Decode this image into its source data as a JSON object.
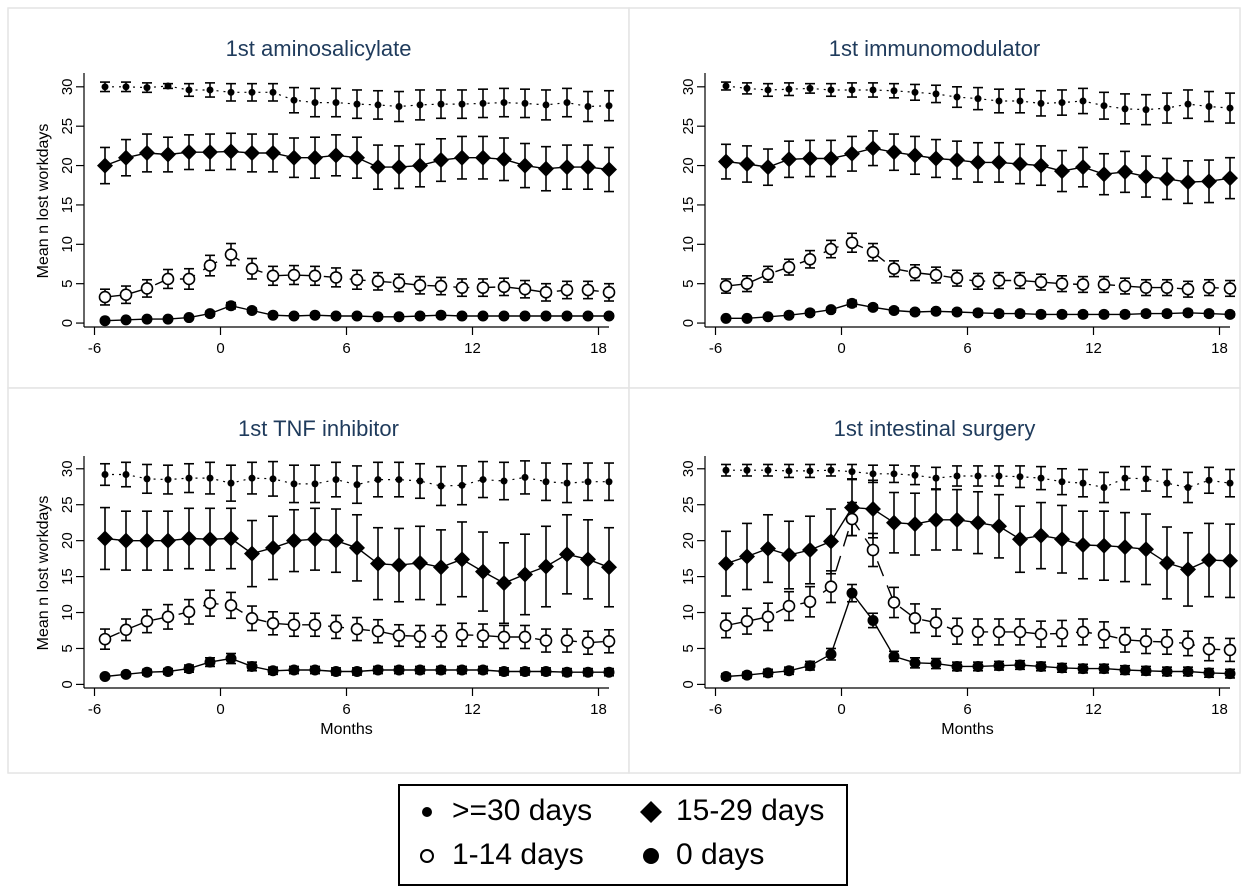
{
  "figure": {
    "panel_bg": "#ffffff",
    "panel_border": "#e4e4e4",
    "title_color": "#1f3b5c",
    "axis_color": "#000000"
  },
  "legend": {
    "position": "bottom-center",
    "items": [
      {
        "label": ">=30 days",
        "marker": "small-filled-circle",
        "line": "dotted"
      },
      {
        "label": "15-29 days",
        "marker": "filled-diamond",
        "line": "solid"
      },
      {
        "label": "1-14 days",
        "marker": "hollow-circle",
        "line": "long-dash"
      },
      {
        "label": "0 days",
        "marker": "filled-circle",
        "line": "solid"
      }
    ]
  },
  "chart_data": [
    {
      "type": "line",
      "title": "1st aminosalicylate",
      "xlabel": "",
      "ylabel": "Mean n lost workdays",
      "xticks": [
        -6,
        0,
        6,
        12,
        18
      ],
      "yticks": [
        0,
        5,
        10,
        15,
        20,
        25,
        30
      ],
      "xlim": [
        -6.5,
        18.5
      ],
      "ylim": [
        -0.5,
        31.5
      ],
      "grid": false,
      "x": [
        -5.5,
        -4.5,
        -3.5,
        -2.5,
        -1.5,
        -0.5,
        0.5,
        1.5,
        2.5,
        3.5,
        4.5,
        5.5,
        6.5,
        7.5,
        8.5,
        9.5,
        10.5,
        11.5,
        12.5,
        13.5,
        14.5,
        15.5,
        16.5,
        17.5,
        18.5
      ],
      "series": [
        {
          "name": ">=30 days",
          "values": [
            30.0,
            30.0,
            29.9,
            30.1,
            29.6,
            29.6,
            29.3,
            29.3,
            29.3,
            28.3,
            28.0,
            28.0,
            27.8,
            27.7,
            27.5,
            27.7,
            27.8,
            27.8,
            27.9,
            28.0,
            27.9,
            27.7,
            28.0,
            27.5,
            27.6
          ],
          "err": [
            0.6,
            0.6,
            0.6,
            0.3,
            0.8,
            0.9,
            1.1,
            1.1,
            1.1,
            1.6,
            1.8,
            1.8,
            1.8,
            1.8,
            1.9,
            1.9,
            1.8,
            1.8,
            1.8,
            1.8,
            1.8,
            1.9,
            1.8,
            1.9,
            1.9
          ]
        },
        {
          "name": "15-29 days",
          "values": [
            20.0,
            21.0,
            21.6,
            21.4,
            21.7,
            21.7,
            21.8,
            21.6,
            21.6,
            21.0,
            21.0,
            21.3,
            21.0,
            19.8,
            19.8,
            20.0,
            20.7,
            21.0,
            21.0,
            20.8,
            20.0,
            19.6,
            19.8,
            19.8,
            19.5
          ],
          "err": [
            2.3,
            2.3,
            2.4,
            2.2,
            2.2,
            2.3,
            2.3,
            2.4,
            2.4,
            2.5,
            2.6,
            2.6,
            2.6,
            2.8,
            2.7,
            2.7,
            2.7,
            2.7,
            2.7,
            2.7,
            2.8,
            2.8,
            2.8,
            2.8,
            2.8
          ]
        },
        {
          "name": "1-14 days",
          "values": [
            3.3,
            3.6,
            4.4,
            5.6,
            5.6,
            7.3,
            8.7,
            6.9,
            6.0,
            6.1,
            6.0,
            5.8,
            5.5,
            5.3,
            5.1,
            4.8,
            4.7,
            4.5,
            4.5,
            4.6,
            4.3,
            3.9,
            4.2,
            4.2,
            3.9
          ],
          "err": [
            1.0,
            1.1,
            1.1,
            1.2,
            1.3,
            1.3,
            1.4,
            1.3,
            1.2,
            1.2,
            1.2,
            1.2,
            1.2,
            1.1,
            1.1,
            1.1,
            1.1,
            1.1,
            1.1,
            1.1,
            1.1,
            1.1,
            1.1,
            1.1,
            1.1
          ]
        },
        {
          "name": "0 days",
          "values": [
            0.3,
            0.4,
            0.5,
            0.5,
            0.7,
            1.2,
            2.2,
            1.6,
            1.0,
            0.9,
            1.0,
            0.9,
            0.9,
            0.8,
            0.8,
            0.9,
            1.0,
            0.9,
            0.9,
            0.9,
            0.9,
            0.9,
            0.9,
            0.9,
            0.9
          ],
          "err": [
            0.15,
            0.15,
            0.2,
            0.2,
            0.25,
            0.3,
            0.4,
            0.3,
            0.25,
            0.25,
            0.25,
            0.25,
            0.25,
            0.25,
            0.25,
            0.25,
            0.25,
            0.25,
            0.25,
            0.25,
            0.25,
            0.25,
            0.25,
            0.25,
            0.25
          ]
        }
      ]
    },
    {
      "type": "line",
      "title": "1st immunomodulator",
      "xlabel": "",
      "ylabel": "",
      "xticks": [
        -6,
        0,
        6,
        12,
        18
      ],
      "yticks": [
        0,
        5,
        10,
        15,
        20,
        25,
        30
      ],
      "xlim": [
        -6.5,
        18.5
      ],
      "ylim": [
        -0.5,
        31.5
      ],
      "grid": false,
      "x": [
        -5.5,
        -4.5,
        -3.5,
        -2.5,
        -1.5,
        -0.5,
        0.5,
        1.5,
        2.5,
        3.5,
        4.5,
        5.5,
        6.5,
        7.5,
        8.5,
        9.5,
        10.5,
        11.5,
        12.5,
        13.5,
        14.5,
        15.5,
        16.5,
        17.5,
        18.5
      ],
      "series": [
        {
          "name": ">=30 days",
          "values": [
            30.1,
            29.8,
            29.6,
            29.7,
            29.8,
            29.6,
            29.6,
            29.6,
            29.5,
            29.3,
            29.1,
            28.7,
            28.5,
            28.2,
            28.2,
            27.9,
            28.0,
            28.2,
            27.6,
            27.2,
            27.1,
            27.3,
            27.8,
            27.5,
            27.3
          ],
          "err": [
            0.5,
            0.7,
            0.8,
            0.8,
            0.6,
            0.8,
            0.9,
            0.9,
            0.9,
            1.0,
            1.1,
            1.3,
            1.4,
            1.5,
            1.5,
            1.6,
            1.6,
            1.6,
            1.7,
            1.9,
            1.9,
            1.9,
            1.8,
            1.9,
            1.9
          ]
        },
        {
          "name": "15-29 days",
          "values": [
            20.5,
            20.2,
            19.8,
            20.8,
            20.9,
            20.9,
            21.5,
            22.2,
            21.7,
            21.3,
            20.9,
            20.7,
            20.4,
            20.4,
            20.2,
            20.0,
            19.3,
            19.8,
            18.9,
            19.2,
            18.6,
            18.3,
            17.9,
            18.0,
            18.4
          ],
          "err": [
            2.2,
            2.3,
            2.3,
            2.3,
            2.3,
            2.3,
            2.2,
            2.2,
            2.3,
            2.4,
            2.4,
            2.4,
            2.5,
            2.5,
            2.5,
            2.5,
            2.6,
            2.5,
            2.6,
            2.6,
            2.6,
            2.6,
            2.7,
            2.7,
            2.6
          ]
        },
        {
          "name": "1-14 days",
          "values": [
            4.7,
            5.0,
            6.2,
            7.1,
            8.1,
            9.4,
            10.2,
            9.0,
            6.9,
            6.4,
            6.1,
            5.7,
            5.3,
            5.4,
            5.4,
            5.2,
            5.0,
            4.9,
            4.9,
            4.7,
            4.5,
            4.5,
            4.3,
            4.5,
            4.4
          ],
          "err": [
            0.9,
            1.0,
            1.0,
            1.0,
            1.1,
            1.1,
            1.2,
            1.1,
            1.0,
            1.0,
            1.0,
            1.0,
            1.0,
            1.0,
            1.0,
            1.0,
            1.0,
            1.0,
            1.0,
            1.0,
            1.0,
            1.0,
            1.0,
            1.0,
            1.0
          ]
        },
        {
          "name": "0 days",
          "values": [
            0.6,
            0.6,
            0.8,
            1.0,
            1.3,
            1.7,
            2.5,
            2.0,
            1.6,
            1.4,
            1.5,
            1.4,
            1.3,
            1.2,
            1.2,
            1.1,
            1.1,
            1.1,
            1.1,
            1.1,
            1.2,
            1.2,
            1.3,
            1.2,
            1.1
          ],
          "err": [
            0.2,
            0.2,
            0.2,
            0.25,
            0.3,
            0.3,
            0.4,
            0.3,
            0.3,
            0.3,
            0.3,
            0.3,
            0.3,
            0.3,
            0.3,
            0.3,
            0.3,
            0.3,
            0.3,
            0.3,
            0.3,
            0.3,
            0.3,
            0.3,
            0.3
          ]
        }
      ]
    },
    {
      "type": "line",
      "title": "1st TNF inhibitor",
      "xlabel": "Months",
      "ylabel": "Mean n lost workdays",
      "xticks": [
        -6,
        0,
        6,
        12,
        18
      ],
      "yticks": [
        0,
        5,
        10,
        15,
        20,
        25,
        30
      ],
      "xlim": [
        -6.5,
        18.5
      ],
      "ylim": [
        -0.5,
        31.5
      ],
      "grid": false,
      "x": [
        -5.5,
        -4.5,
        -3.5,
        -2.5,
        -1.5,
        -0.5,
        0.5,
        1.5,
        2.5,
        3.5,
        4.5,
        5.5,
        6.5,
        7.5,
        8.5,
        9.5,
        10.5,
        11.5,
        12.5,
        13.5,
        14.5,
        15.5,
        16.5,
        17.5,
        18.5
      ],
      "series": [
        {
          "name": ">=30 days",
          "values": [
            29.2,
            29.2,
            28.6,
            28.5,
            28.7,
            28.7,
            28.0,
            28.7,
            28.6,
            27.9,
            27.9,
            28.5,
            27.8,
            28.5,
            28.5,
            28.3,
            27.6,
            27.7,
            28.5,
            28.3,
            28.8,
            28.2,
            28.0,
            28.2,
            28.2
          ],
          "err": [
            1.5,
            1.7,
            2.0,
            2.0,
            2.0,
            2.2,
            2.5,
            2.2,
            2.4,
            2.6,
            2.6,
            2.4,
            2.6,
            2.4,
            2.4,
            2.4,
            2.7,
            2.7,
            2.5,
            2.6,
            2.3,
            2.6,
            2.7,
            2.6,
            2.6
          ]
        },
        {
          "name": "15-29 days",
          "values": [
            20.3,
            20.0,
            20.0,
            20.0,
            20.3,
            20.2,
            20.3,
            18.2,
            19.0,
            20.0,
            20.2,
            20.0,
            19.0,
            16.8,
            16.6,
            16.9,
            16.3,
            17.4,
            15.7,
            14.1,
            15.3,
            16.4,
            18.1,
            17.4,
            16.3
          ],
          "err": [
            4.3,
            4.1,
            4.1,
            4.1,
            4.2,
            4.3,
            4.2,
            4.6,
            4.4,
            4.3,
            4.3,
            4.4,
            4.6,
            5.0,
            5.1,
            5.1,
            5.2,
            5.2,
            5.5,
            5.6,
            5.6,
            5.6,
            5.5,
            5.5,
            5.5
          ]
        },
        {
          "name": "1-14 days",
          "values": [
            6.3,
            7.6,
            8.8,
            9.4,
            10.1,
            11.3,
            11.0,
            9.2,
            8.5,
            8.3,
            8.3,
            8.0,
            7.7,
            7.4,
            6.8,
            6.7,
            6.7,
            6.9,
            6.8,
            6.6,
            6.6,
            6.1,
            6.1,
            5.8,
            6.0
          ],
          "err": [
            1.4,
            1.5,
            1.6,
            1.7,
            1.7,
            1.8,
            1.8,
            1.7,
            1.6,
            1.6,
            1.6,
            1.6,
            1.6,
            1.6,
            1.5,
            1.5,
            1.5,
            1.6,
            1.6,
            1.6,
            1.6,
            1.6,
            1.6,
            1.6,
            1.6
          ]
        },
        {
          "name": "0 days",
          "values": [
            1.1,
            1.4,
            1.7,
            1.8,
            2.2,
            3.1,
            3.6,
            2.5,
            1.9,
            2.0,
            2.0,
            1.8,
            1.8,
            2.0,
            2.0,
            2.0,
            2.0,
            2.0,
            2.0,
            1.8,
            1.8,
            1.8,
            1.7,
            1.7,
            1.7
          ],
          "err": [
            0.3,
            0.3,
            0.4,
            0.4,
            0.5,
            0.6,
            0.7,
            0.6,
            0.5,
            0.5,
            0.5,
            0.5,
            0.5,
            0.5,
            0.5,
            0.5,
            0.5,
            0.5,
            0.5,
            0.5,
            0.5,
            0.5,
            0.5,
            0.5,
            0.5
          ]
        }
      ]
    },
    {
      "type": "line",
      "title": "1st intestinal surgery",
      "xlabel": "Months",
      "ylabel": "",
      "xticks": [
        -6,
        0,
        6,
        12,
        18
      ],
      "yticks": [
        0,
        5,
        10,
        15,
        20,
        25,
        30
      ],
      "xlim": [
        -6.5,
        18.5
      ],
      "ylim": [
        -0.5,
        31.5
      ],
      "grid": false,
      "x": [
        -5.5,
        -4.5,
        -3.5,
        -2.5,
        -1.5,
        -0.5,
        0.5,
        1.5,
        2.5,
        3.5,
        4.5,
        5.5,
        6.5,
        7.5,
        8.5,
        9.5,
        10.5,
        11.5,
        12.5,
        13.5,
        14.5,
        15.5,
        16.5,
        17.5,
        18.5
      ],
      "series": [
        {
          "name": ">=30 days",
          "values": [
            29.8,
            29.8,
            29.8,
            29.7,
            29.7,
            29.8,
            29.6,
            29.3,
            29.3,
            29.1,
            28.7,
            29.0,
            29.0,
            29.0,
            28.9,
            28.7,
            28.2,
            28.0,
            27.4,
            28.7,
            28.6,
            28.0,
            27.4,
            28.4,
            28.0
          ],
          "err": [
            0.8,
            0.8,
            0.8,
            0.9,
            0.9,
            0.8,
            1.0,
            1.2,
            1.2,
            1.3,
            1.5,
            1.4,
            1.4,
            1.4,
            1.5,
            1.6,
            1.8,
            1.9,
            2.1,
            1.6,
            1.7,
            1.9,
            2.1,
            1.8,
            1.9
          ]
        },
        {
          "name": "15-29 days",
          "values": [
            16.8,
            17.8,
            18.9,
            18.0,
            18.7,
            19.9,
            24.6,
            24.4,
            22.5,
            22.3,
            22.9,
            22.9,
            22.5,
            22.0,
            20.2,
            20.7,
            20.2,
            19.4,
            19.3,
            19.1,
            18.8,
            16.9,
            16.0,
            17.3,
            17.2
          ],
          "err": [
            4.5,
            4.6,
            4.7,
            4.7,
            4.7,
            4.5,
            3.9,
            4.0,
            4.2,
            4.3,
            4.2,
            4.2,
            4.3,
            4.4,
            4.6,
            4.6,
            4.7,
            4.7,
            4.8,
            4.8,
            4.9,
            5.0,
            5.1,
            5.1,
            5.1
          ]
        },
        {
          "name": "1-14 days",
          "values": [
            8.2,
            8.8,
            9.4,
            10.9,
            11.5,
            13.6,
            23.0,
            18.7,
            11.4,
            9.2,
            8.6,
            7.4,
            7.3,
            7.3,
            7.3,
            7.0,
            7.1,
            7.3,
            6.9,
            6.2,
            6.0,
            5.9,
            5.7,
            4.9,
            4.8
          ],
          "err": [
            1.7,
            1.8,
            1.9,
            2.0,
            2.1,
            2.2,
            2.3,
            2.3,
            2.1,
            2.0,
            1.9,
            1.8,
            1.8,
            1.8,
            1.8,
            1.8,
            1.8,
            1.8,
            1.8,
            1.7,
            1.7,
            1.7,
            1.7,
            1.6,
            1.6
          ]
        },
        {
          "name": "0 days",
          "values": [
            1.1,
            1.3,
            1.6,
            1.9,
            2.6,
            4.2,
            12.7,
            8.9,
            3.9,
            3.0,
            2.9,
            2.5,
            2.5,
            2.6,
            2.7,
            2.5,
            2.3,
            2.2,
            2.2,
            2.0,
            1.9,
            1.8,
            1.8,
            1.6,
            1.5
          ],
          "err": [
            0.4,
            0.4,
            0.5,
            0.5,
            0.6,
            0.8,
            1.2,
            1.0,
            0.7,
            0.7,
            0.7,
            0.6,
            0.6,
            0.6,
            0.6,
            0.6,
            0.6,
            0.6,
            0.6,
            0.6,
            0.6,
            0.6,
            0.6,
            0.6,
            0.6
          ]
        }
      ]
    }
  ]
}
